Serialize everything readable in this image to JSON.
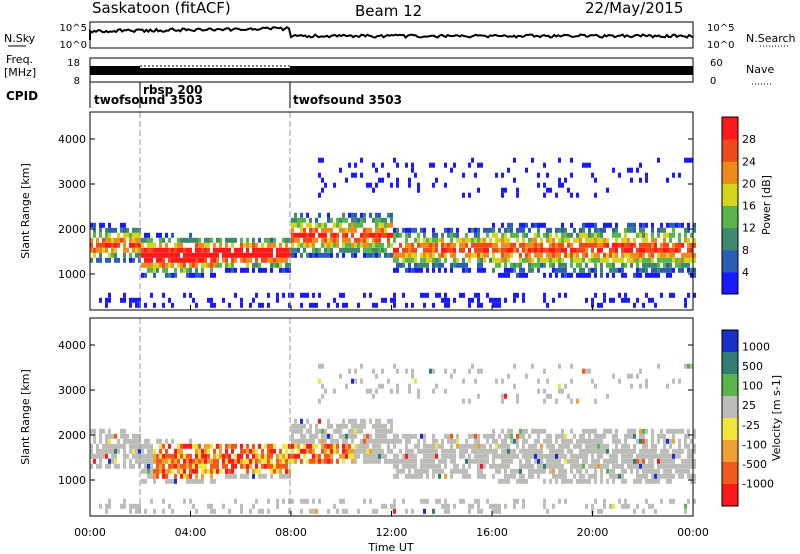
{
  "header": {
    "station": "Saskatoon (fitACF)",
    "beam": "Beam 12",
    "date": "22/May/2015"
  },
  "left_labels": {
    "nsky": "N.Sky",
    "freq_top": "Freq.",
    "freq_unit": "[MHz]",
    "cpid": "CPID"
  },
  "right_labels": {
    "nsearch": "N.Search",
    "nave": "Nave"
  },
  "noise_panel": {
    "left_ticks": [
      "10^5",
      "10^0"
    ],
    "right_ticks": [
      "10^5",
      "10^0"
    ]
  },
  "freq_panel": {
    "left_ticks": [
      "18",
      "8"
    ],
    "right_ticks": [
      "60",
      "0"
    ]
  },
  "cpid_panel": {
    "segments": [
      {
        "start_hour": 0,
        "label": "twofsound 3503"
      },
      {
        "start_hour": 2,
        "label": "rbsp 200"
      },
      {
        "start_hour": 8,
        "label": "twofsound 3503"
      }
    ]
  },
  "chart_data": [
    {
      "type": "heatmap",
      "name": "power",
      "xlabel": "",
      "ylabel": "Slant Range [km]",
      "xlim": [
        0,
        24
      ],
      "ylim": [
        200,
        4600
      ],
      "yticks": [
        1000,
        2000,
        3000,
        4000
      ],
      "colorbar": {
        "label": "Power [dB]",
        "ticks": [
          "4",
          "8",
          "12",
          "16",
          "20",
          "24",
          "28"
        ],
        "colors": [
          "#1a1aff",
          "#2a5fb5",
          "#3f8a6e",
          "#58b548",
          "#d4d41a",
          "#f08a1a",
          "#f04a1a",
          "#ff1a1a"
        ]
      }
    },
    {
      "type": "heatmap",
      "name": "velocity",
      "xlabel": "Time UT",
      "ylabel": "Slant Range [km]",
      "xlim": [
        0,
        24
      ],
      "ylim": [
        200,
        4600
      ],
      "yticks": [
        1000,
        2000,
        3000,
        4000
      ],
      "xticks": [
        "00:00",
        "04:00",
        "08:00",
        "12:00",
        "16:00",
        "20:00",
        "00:00"
      ],
      "ground_scatter_color": "#bcbcb8",
      "colorbar": {
        "label": "Velocity [m s-1]",
        "ticks": [
          "1000",
          "500",
          "100",
          "25",
          "-25",
          "-100",
          "-500",
          "-1000"
        ],
        "colors": [
          "#1a2fc8",
          "#2f7f72",
          "#58b548",
          "#bcbcb8",
          "#f0e63a",
          "#f0a032",
          "#f05a1a",
          "#ff1a1a"
        ]
      }
    }
  ]
}
